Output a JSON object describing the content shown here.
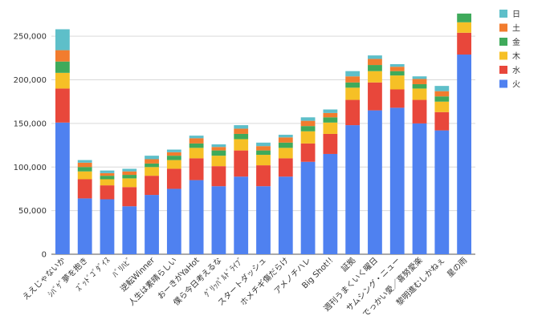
{
  "chart_data": {
    "type": "bar",
    "stacked": true,
    "title": "",
    "xlabel": "",
    "ylabel": "",
    "ylim": [
      0,
      275000
    ],
    "yticks": [
      0,
      50000,
      100000,
      150000,
      200000,
      250000
    ],
    "ytick_labels": [
      "0",
      "50,000",
      "100,000",
      "150,000",
      "200,000",
      "250,000"
    ],
    "grid": true,
    "legend_position": "right",
    "categories": [
      "ええじゃないか",
      "ｼﾊﾞｹﾞ夢を抱き",
      "ｽﾞｯﾄﾞｺﾞﾀﾞｲｽ",
      "ﾊﾞﾘﾊﾋﾞ",
      "逆転Winner",
      "人生は素晴らしい",
      "おーきがYaHot",
      "僕ら今日考えるな",
      "ｸﾞﾘｯﾊﾟﾙﾄﾞﾗｲﾌﾞ",
      "スタートダッシュ",
      "ホメチギ傷だらけ",
      "アメノチハレ",
      "Big Shot!!",
      "証拠",
      "週刊うまくいく曜日",
      "サムシング・ニュー",
      "でっかい愛／喜努愛楽",
      "黎明進むしかねぇ",
      "星の雨"
    ],
    "series": [
      {
        "name": "火",
        "color": "#4f81f0",
        "values": [
          151000,
          64000,
          63000,
          55000,
          68000,
          75000,
          85000,
          78000,
          89000,
          78000,
          89000,
          106000,
          115000,
          148000,
          165000,
          168000,
          150000,
          142000,
          229000
        ]
      },
      {
        "name": "水",
        "color": "#e8473b",
        "values": [
          39000,
          22000,
          16000,
          22000,
          22000,
          23000,
          25000,
          23000,
          30000,
          24000,
          21000,
          21000,
          23000,
          29000,
          32000,
          21000,
          27000,
          21000,
          25000
        ]
      },
      {
        "name": "木",
        "color": "#f6c026",
        "values": [
          18000,
          9000,
          7000,
          10000,
          10000,
          10000,
          12000,
          12000,
          13000,
          12000,
          12000,
          14000,
          13000,
          14000,
          13000,
          16000,
          13000,
          12000,
          12000
        ]
      },
      {
        "name": "金",
        "color": "#3faa5b",
        "values": [
          13000,
          5000,
          4000,
          4000,
          4000,
          5000,
          5000,
          6000,
          6000,
          5000,
          6000,
          6000,
          6000,
          6000,
          7000,
          5000,
          5000,
          6000,
          10000
        ]
      },
      {
        "name": "土",
        "color": "#f27c2e",
        "values": [
          13000,
          5000,
          3000,
          4000,
          5000,
          4000,
          6000,
          4000,
          6000,
          5000,
          6000,
          6000,
          5000,
          7000,
          7000,
          5000,
          6000,
          6000,
          0
        ]
      },
      {
        "name": "日",
        "color": "#5ebfc9",
        "values": [
          24000,
          3000,
          3000,
          3000,
          4000,
          3000,
          3000,
          3000,
          4000,
          4000,
          3000,
          4000,
          4000,
          6000,
          4000,
          3000,
          3000,
          6000,
          0
        ]
      }
    ]
  }
}
